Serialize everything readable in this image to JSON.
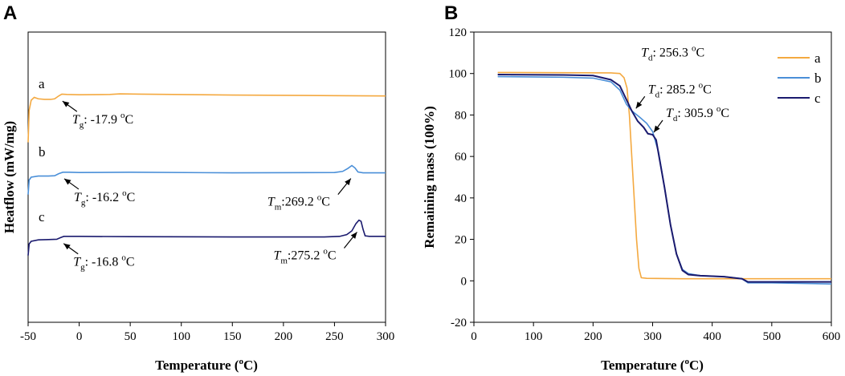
{
  "colors": {
    "a": "#F4A940",
    "b": "#4A8FD8",
    "c": "#1A1A6E",
    "axis": "#000000"
  },
  "chart_data": [
    {
      "panel": "A",
      "type": "line",
      "xlabel": "Temperature (oC)",
      "xlabel_parts": {
        "main": "Temperature (",
        "sup": "o",
        "tail": "C)"
      },
      "ylabel": "Heatflow (mW/mg)",
      "xlim": [
        -50,
        300
      ],
      "xticks": [
        -50,
        0,
        50,
        100,
        150,
        200,
        250,
        300
      ],
      "yticks": [],
      "series": [
        {
          "name": "a",
          "offset": 0.77,
          "points": [
            [
              -50,
              0.62
            ],
            [
              -49,
              0.73
            ],
            [
              -47,
              0.765
            ],
            [
              -44,
              0.775
            ],
            [
              -40,
              0.77
            ],
            [
              -34,
              0.768
            ],
            [
              -28,
              0.768
            ],
            [
              -24,
              0.77
            ],
            [
              -20,
              0.78
            ],
            [
              -17,
              0.786
            ],
            [
              -12,
              0.785
            ],
            [
              0,
              0.784
            ],
            [
              30,
              0.785
            ],
            [
              40,
              0.787
            ],
            [
              60,
              0.786
            ],
            [
              150,
              0.783
            ],
            [
              250,
              0.781
            ],
            [
              300,
              0.78
            ]
          ]
        },
        {
          "name": "b",
          "offset": 0.5,
          "points": [
            [
              -50,
              0.44
            ],
            [
              -49,
              0.49
            ],
            [
              -47,
              0.5
            ],
            [
              -40,
              0.504
            ],
            [
              -30,
              0.504
            ],
            [
              -24,
              0.505
            ],
            [
              -20,
              0.512
            ],
            [
              -16,
              0.517
            ],
            [
              -10,
              0.517
            ],
            [
              0,
              0.516
            ],
            [
              50,
              0.517
            ],
            [
              150,
              0.515
            ],
            [
              250,
              0.516
            ],
            [
              258,
              0.52
            ],
            [
              263,
              0.53
            ],
            [
              267,
              0.54
            ],
            [
              270,
              0.532
            ],
            [
              273,
              0.518
            ],
            [
              278,
              0.515
            ],
            [
              300,
              0.515
            ]
          ]
        },
        {
          "name": "c",
          "offset": 0.28,
          "points": [
            [
              -50,
              0.23
            ],
            [
              -49,
              0.27
            ],
            [
              -47,
              0.279
            ],
            [
              -40,
              0.284
            ],
            [
              -30,
              0.285
            ],
            [
              -22,
              0.286
            ],
            [
              -18,
              0.292
            ],
            [
              -15,
              0.296
            ],
            [
              -10,
              0.296
            ],
            [
              0,
              0.296
            ],
            [
              50,
              0.295
            ],
            [
              150,
              0.294
            ],
            [
              240,
              0.294
            ],
            [
              255,
              0.296
            ],
            [
              262,
              0.302
            ],
            [
              267,
              0.315
            ],
            [
              271,
              0.34
            ],
            [
              274,
              0.352
            ],
            [
              276,
              0.348
            ],
            [
              278,
              0.32
            ],
            [
              280,
              0.298
            ],
            [
              284,
              0.296
            ],
            [
              300,
              0.296
            ]
          ]
        }
      ],
      "labels": {
        "a": "a",
        "b": "b",
        "c": "c"
      },
      "annotations": [
        {
          "id": "tg-a",
          "sym": "T",
          "sub": "g",
          "text": ": -17.9 ",
          "sup": "o",
          "unit": "C",
          "series": "a",
          "at_x": -17.9
        },
        {
          "id": "tg-b",
          "sym": "T",
          "sub": "g",
          "text": ": -16.2 ",
          "sup": "o",
          "unit": "C",
          "series": "b",
          "at_x": -16.2
        },
        {
          "id": "tm-b",
          "sym": "T",
          "sub": "m",
          "text": ":269.2 ",
          "sup": "o",
          "unit": "C",
          "series": "b",
          "at_x": 269.2
        },
        {
          "id": "tg-c",
          "sym": "T",
          "sub": "g",
          "text": ": -16.8 ",
          "sup": "o",
          "unit": "C",
          "series": "c",
          "at_x": -16.8
        },
        {
          "id": "tm-c",
          "sym": "T",
          "sub": "m",
          "text": ":275.2 ",
          "sup": "o",
          "unit": "C",
          "series": "c",
          "at_x": 275.2
        }
      ]
    },
    {
      "panel": "B",
      "type": "line",
      "xlabel": "Temperature (oC)",
      "xlabel_parts": {
        "main": "Temperature (",
        "sup": "o",
        "tail": "C)"
      },
      "ylabel": "Remaining mass (100%)",
      "xlim": [
        0,
        600
      ],
      "ylim": [
        -20,
        120
      ],
      "xticks": [
        0,
        100,
        200,
        300,
        400,
        500,
        600
      ],
      "yticks": [
        -20,
        0,
        20,
        40,
        60,
        80,
        100,
        120
      ],
      "legend": "top-right",
      "series": [
        {
          "name": "a",
          "points": [
            [
              40,
              100.5
            ],
            [
              150,
              100.4
            ],
            [
              230,
              100.3
            ],
            [
              245,
              100
            ],
            [
              252,
              98
            ],
            [
              257,
              93
            ],
            [
              261,
              80
            ],
            [
              265,
              60
            ],
            [
              269,
              40
            ],
            [
              273,
              20
            ],
            [
              277,
              6
            ],
            [
              281,
              1.5
            ],
            [
              290,
              1.2
            ],
            [
              350,
              1.0
            ],
            [
              450,
              1.0
            ],
            [
              600,
              1.0
            ]
          ]
        },
        {
          "name": "b",
          "points": [
            [
              40,
              98.5
            ],
            [
              150,
              98.2
            ],
            [
              200,
              97.8
            ],
            [
              230,
              96
            ],
            [
              245,
              92
            ],
            [
              256,
              85.2
            ],
            [
              265,
              82
            ],
            [
              278,
              79
            ],
            [
              290,
              76
            ],
            [
              300,
              72
            ],
            [
              310,
              62
            ],
            [
              320,
              45
            ],
            [
              330,
              27
            ],
            [
              340,
              13
            ],
            [
              350,
              5.5
            ],
            [
              360,
              3.5
            ],
            [
              380,
              2.5
            ],
            [
              420,
              2
            ],
            [
              450,
              1
            ],
            [
              460,
              -1
            ],
            [
              500,
              -1
            ],
            [
              600,
              -1.5
            ]
          ]
        },
        {
          "name": "c",
          "points": [
            [
              40,
              99.5
            ],
            [
              150,
              99.3
            ],
            [
              200,
              99
            ],
            [
              230,
              97
            ],
            [
              245,
              94
            ],
            [
              255,
              88
            ],
            [
              265,
              82
            ],
            [
              275,
              77
            ],
            [
              285,
              74
            ],
            [
              292,
              71
            ],
            [
              300,
              70.5
            ],
            [
              305.9,
              68
            ],
            [
              312,
              58
            ],
            [
              320,
              45
            ],
            [
              330,
              27
            ],
            [
              340,
              13
            ],
            [
              350,
              5
            ],
            [
              360,
              3
            ],
            [
              380,
              2.5
            ],
            [
              420,
              2
            ],
            [
              450,
              1
            ],
            [
              460,
              -0.5
            ],
            [
              500,
              -0.5
            ],
            [
              600,
              -0.5
            ]
          ]
        }
      ],
      "legend_entries": [
        "a",
        "b",
        "c"
      ],
      "annotations": [
        {
          "id": "td-a",
          "sym": "T",
          "sub": "d",
          "text": ": 256.3 ",
          "sup": "o",
          "unit": "C",
          "series": "a",
          "at": [
            256.3,
            99.6
          ]
        },
        {
          "id": "td-b",
          "sym": "T",
          "sub": "d",
          "text": ": 285.2 ",
          "sup": "o",
          "unit": "C",
          "series": "b",
          "at": [
            268,
            82.0
          ]
        },
        {
          "id": "td-c",
          "sym": "T",
          "sub": "d",
          "text": ": 305.9 ",
          "sup": "o",
          "unit": "C",
          "series": "c",
          "at": [
            298,
            70.5
          ]
        }
      ]
    }
  ]
}
